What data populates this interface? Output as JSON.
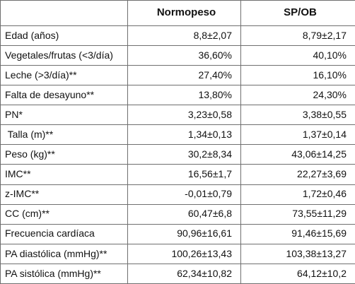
{
  "table": {
    "headers": [
      "",
      "Normopeso",
      "SP/OB"
    ],
    "rows": [
      {
        "label": "Edad (años)",
        "normopeso": "8,8±2,07",
        "spob": "8,79±2,17"
      },
      {
        "label": "Vegetales/frutas (<3/día)",
        "normopeso": "36,60%",
        "spob": "40,10%"
      },
      {
        "label": "Leche (>3/día)**",
        "normopeso": "27,40%",
        "spob": "16,10%"
      },
      {
        "label": "Falta de desayuno**",
        "normopeso": "13,80%",
        "spob": "24,30%"
      },
      {
        "label": "PN*",
        "normopeso": "3,23±0,58",
        "spob": "3,38±0,55"
      },
      {
        "label": " Talla (m)**",
        "normopeso": "1,34±0,13",
        "spob": "1,37±0,14"
      },
      {
        "label": "Peso (kg)**",
        "normopeso": "30,2±8,34",
        "spob": "43,06±14,25"
      },
      {
        "label": "IMC**",
        "normopeso": "16,56±1,7",
        "spob": "22,27±3,69"
      },
      {
        "label": "z-IMC**",
        "normopeso": "-0,01±0,79",
        "spob": "1,72±0,46"
      },
      {
        "label": "CC (cm)**",
        "normopeso": "60,47±6,8",
        "spob": "73,55±11,29"
      },
      {
        "label": "Frecuencia cardíaca",
        "normopeso": "90,96±16,61",
        "spob": "91,46±15,69"
      },
      {
        "label": "PA diastólica (mmHg)**",
        "normopeso": "100,26±13,43",
        "spob": "103,38±13,27"
      },
      {
        "label": "PA sistólica (mmHg)**",
        "normopeso": "62,34±10,82",
        "spob": "64,12±10,2"
      }
    ]
  }
}
